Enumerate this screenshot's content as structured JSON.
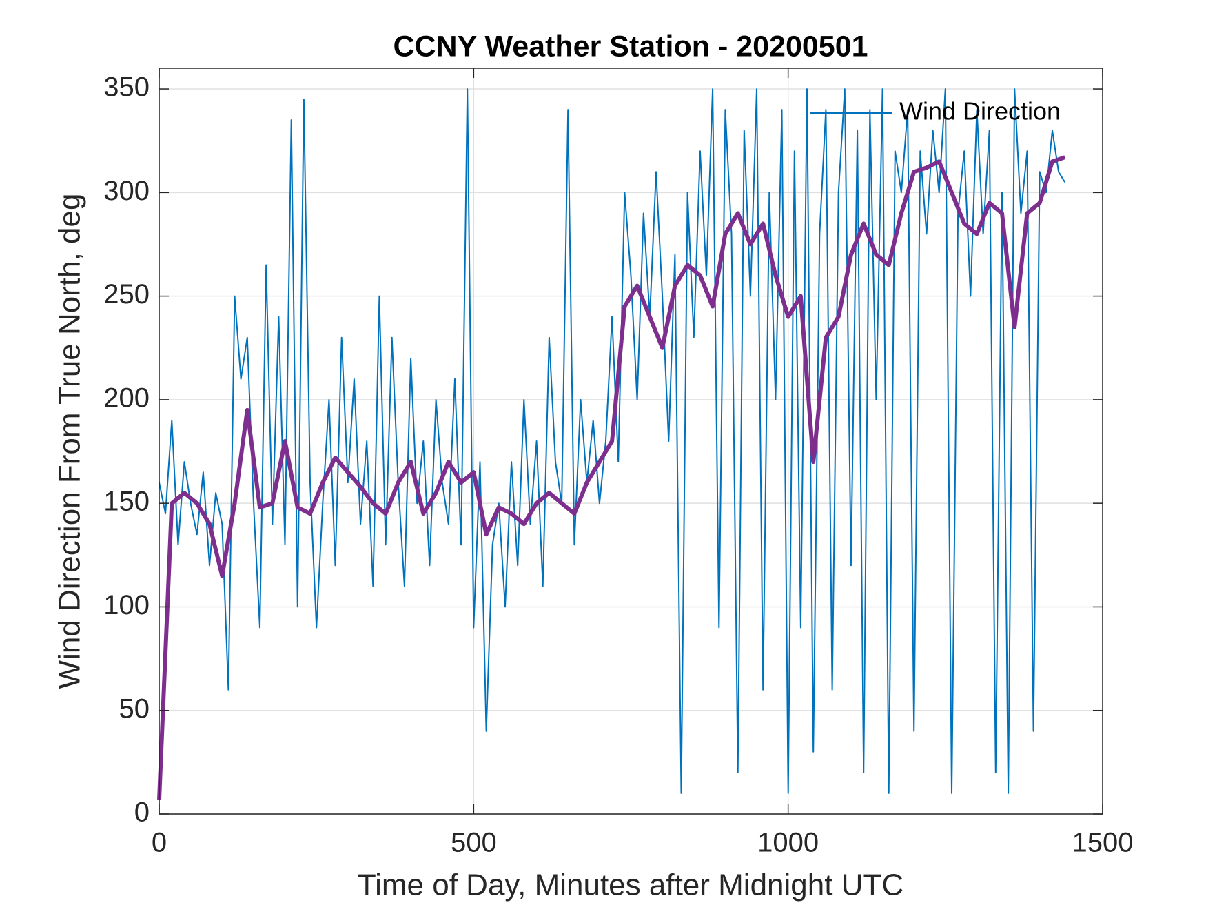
{
  "chart_data": {
    "type": "line",
    "title": "CCNY Weather Station - 20200501",
    "xlabel": "Time of Day, Minutes after Midnight UTC",
    "ylabel": "Wind Direction From True North, deg",
    "xlim": [
      0,
      1500
    ],
    "xticks": [
      0,
      500,
      1000,
      1500
    ],
    "ylim": [
      0,
      360
    ],
    "yticks": [
      0,
      50,
      100,
      150,
      200,
      250,
      300,
      350
    ],
    "grid": true,
    "legend": "upper right",
    "series": [
      {
        "name": "Wind Direction",
        "color": "#0072bd",
        "width": 2,
        "x": [
          0,
          10,
          20,
          30,
          40,
          50,
          60,
          70,
          80,
          90,
          100,
          110,
          120,
          130,
          140,
          150,
          160,
          170,
          180,
          190,
          200,
          210,
          220,
          230,
          240,
          250,
          260,
          270,
          280,
          290,
          300,
          310,
          320,
          330,
          340,
          350,
          360,
          370,
          380,
          390,
          400,
          410,
          420,
          430,
          440,
          450,
          460,
          470,
          480,
          490,
          500,
          510,
          520,
          530,
          540,
          550,
          560,
          570,
          580,
          590,
          600,
          610,
          620,
          630,
          640,
          650,
          660,
          670,
          680,
          690,
          700,
          710,
          720,
          730,
          740,
          750,
          760,
          770,
          780,
          790,
          800,
          810,
          820,
          830,
          840,
          850,
          860,
          870,
          880,
          890,
          900,
          910,
          920,
          930,
          940,
          950,
          960,
          970,
          980,
          990,
          1000,
          1010,
          1020,
          1030,
          1040,
          1050,
          1060,
          1070,
          1080,
          1090,
          1100,
          1110,
          1120,
          1130,
          1140,
          1150,
          1160,
          1170,
          1180,
          1190,
          1200,
          1210,
          1220,
          1230,
          1240,
          1250,
          1260,
          1270,
          1280,
          1290,
          1300,
          1310,
          1320,
          1330,
          1340,
          1350,
          1360,
          1370,
          1380,
          1390,
          1400,
          1410,
          1420,
          1430,
          1440
        ],
        "values": [
          160,
          145,
          190,
          130,
          170,
          150,
          135,
          165,
          120,
          155,
          140,
          60,
          250,
          210,
          230,
          150,
          90,
          265,
          140,
          240,
          130,
          335,
          100,
          345,
          160,
          90,
          150,
          200,
          120,
          230,
          160,
          210,
          140,
          180,
          110,
          250,
          130,
          230,
          160,
          110,
          220,
          150,
          180,
          120,
          200,
          160,
          140,
          210,
          130,
          350,
          90,
          170,
          40,
          130,
          150,
          100,
          170,
          120,
          200,
          140,
          180,
          110,
          230,
          170,
          150,
          340,
          130,
          200,
          160,
          190,
          150,
          180,
          240,
          170,
          300,
          260,
          200,
          290,
          240,
          310,
          250,
          180,
          270,
          10,
          300,
          230,
          320,
          260,
          350,
          90,
          340,
          280,
          20,
          330,
          250,
          350,
          60,
          300,
          200,
          340,
          10,
          320,
          90,
          350,
          30,
          280,
          340,
          60,
          300,
          350,
          120,
          330,
          20,
          340,
          200,
          350,
          10,
          320,
          300,
          340,
          40,
          320,
          280,
          330,
          300,
          350,
          10,
          290,
          320,
          250,
          340,
          280,
          330,
          20,
          300,
          10,
          350,
          290,
          320,
          40,
          310,
          300,
          330,
          310,
          305
        ]
      },
      {
        "color": "#7e2f8e",
        "width": 6,
        "x": [
          0,
          20,
          40,
          60,
          80,
          100,
          120,
          140,
          160,
          180,
          200,
          220,
          240,
          260,
          280,
          300,
          320,
          340,
          360,
          380,
          400,
          420,
          440,
          460,
          480,
          500,
          520,
          540,
          560,
          580,
          600,
          620,
          640,
          660,
          680,
          700,
          720,
          740,
          760,
          780,
          800,
          820,
          840,
          860,
          880,
          900,
          920,
          940,
          960,
          980,
          1000,
          1020,
          1040,
          1060,
          1080,
          1100,
          1120,
          1140,
          1160,
          1180,
          1200,
          1220,
          1240,
          1260,
          1280,
          1300,
          1320,
          1340,
          1360,
          1380,
          1400,
          1420,
          1440
        ],
        "values": [
          7,
          150,
          155,
          150,
          140,
          115,
          150,
          195,
          148,
          150,
          180,
          148,
          145,
          160,
          172,
          165,
          158,
          150,
          145,
          160,
          170,
          145,
          155,
          170,
          160,
          165,
          135,
          148,
          145,
          140,
          150,
          155,
          150,
          145,
          160,
          170,
          180,
          245,
          255,
          240,
          225,
          255,
          265,
          260,
          245,
          280,
          290,
          275,
          285,
          260,
          240,
          250,
          170,
          230,
          240,
          270,
          285,
          270,
          265,
          290,
          310,
          312,
          315,
          300,
          285,
          280,
          295,
          290,
          235,
          290,
          295,
          315,
          317
        ]
      }
    ]
  }
}
